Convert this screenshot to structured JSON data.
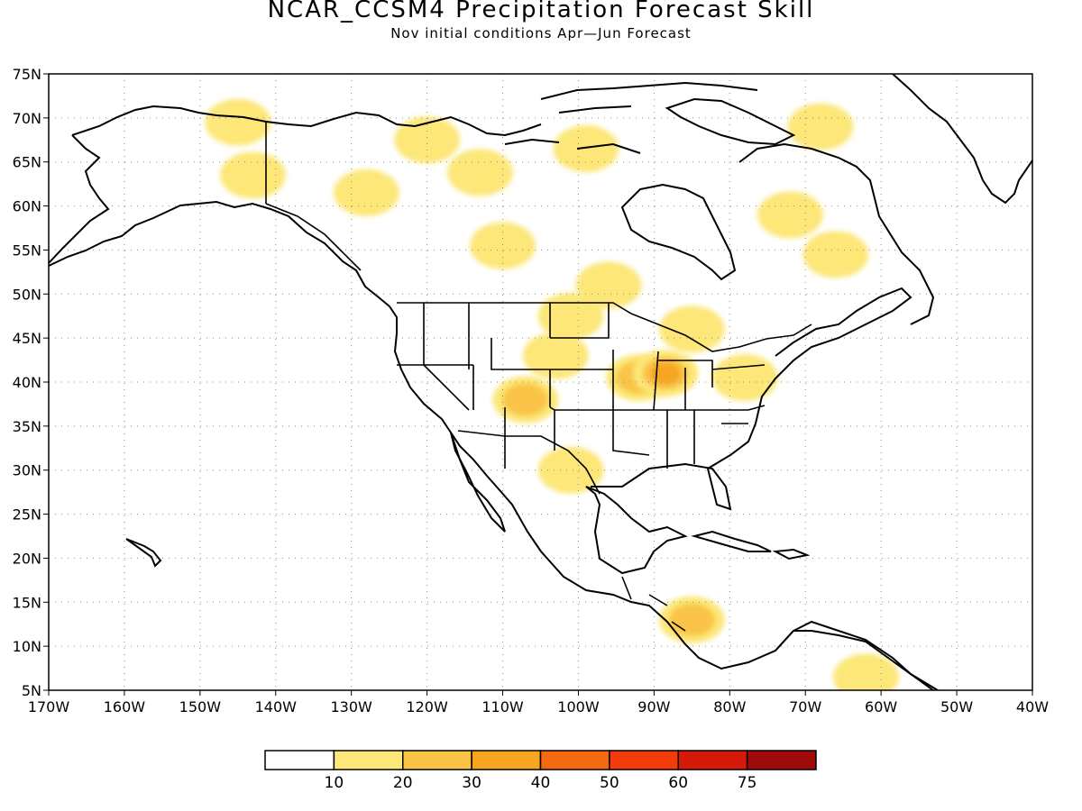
{
  "title": "NCAR_CCSM4 Precipitation Forecast Skill",
  "subtitle": "Nov initial conditions  Apr—Jun Forecast",
  "map": {
    "lat_range": [
      5,
      75
    ],
    "lon_range": [
      -170,
      -40
    ],
    "lat_ticks": [
      "75N",
      "70N",
      "65N",
      "60N",
      "55N",
      "50N",
      "45N",
      "40N",
      "35N",
      "30N",
      "25N",
      "20N",
      "15N",
      "10N",
      "5N"
    ],
    "lon_ticks": [
      "170W",
      "160W",
      "150W",
      "140W",
      "130W",
      "120W",
      "110W",
      "100W",
      "90W",
      "80W",
      "70W",
      "60W",
      "50W",
      "40W"
    ],
    "grid": "dotted",
    "projection": "cylindrical equidistant"
  },
  "colorbar": {
    "labels": [
      "10",
      "20",
      "30",
      "40",
      "50",
      "60",
      "75"
    ],
    "colors": [
      "#ffffff",
      "#fce778",
      "#f9c446",
      "#f7a521",
      "#f46a10",
      "#f23c0b",
      "#d51a0a",
      "#a00a0a"
    ]
  },
  "skill_regions": [
    {
      "lon": -145,
      "lat": 69.5,
      "level": 1
    },
    {
      "lon": -143,
      "lat": 63.5,
      "level": 1
    },
    {
      "lon": -128,
      "lat": 61.5,
      "level": 1
    },
    {
      "lon": -120,
      "lat": 67.5,
      "level": 1
    },
    {
      "lon": -113,
      "lat": 63.8,
      "level": 1
    },
    {
      "lon": -110,
      "lat": 55.5,
      "level": 1
    },
    {
      "lon": -99,
      "lat": 66.5,
      "level": 1
    },
    {
      "lon": -96,
      "lat": 51,
      "level": 1
    },
    {
      "lon": -101,
      "lat": 47.5,
      "level": 1
    },
    {
      "lon": -85,
      "lat": 46,
      "level": 1
    },
    {
      "lon": -68,
      "lat": 69,
      "level": 1
    },
    {
      "lon": -72,
      "lat": 59,
      "level": 1
    },
    {
      "lon": -66,
      "lat": 54.5,
      "level": 1
    },
    {
      "lon": -103,
      "lat": 43,
      "level": 1
    },
    {
      "lon": -107,
      "lat": 38,
      "level": 2
    },
    {
      "lon": -92,
      "lat": 40.5,
      "level": 2
    },
    {
      "lon": -88.5,
      "lat": 41,
      "level": 3
    },
    {
      "lon": -78,
      "lat": 40.5,
      "level": 1
    },
    {
      "lon": -101,
      "lat": 30,
      "level": 1
    },
    {
      "lon": -85,
      "lat": 13,
      "level": 2
    },
    {
      "lon": -62,
      "lat": 6.5,
      "level": 1
    }
  ]
}
